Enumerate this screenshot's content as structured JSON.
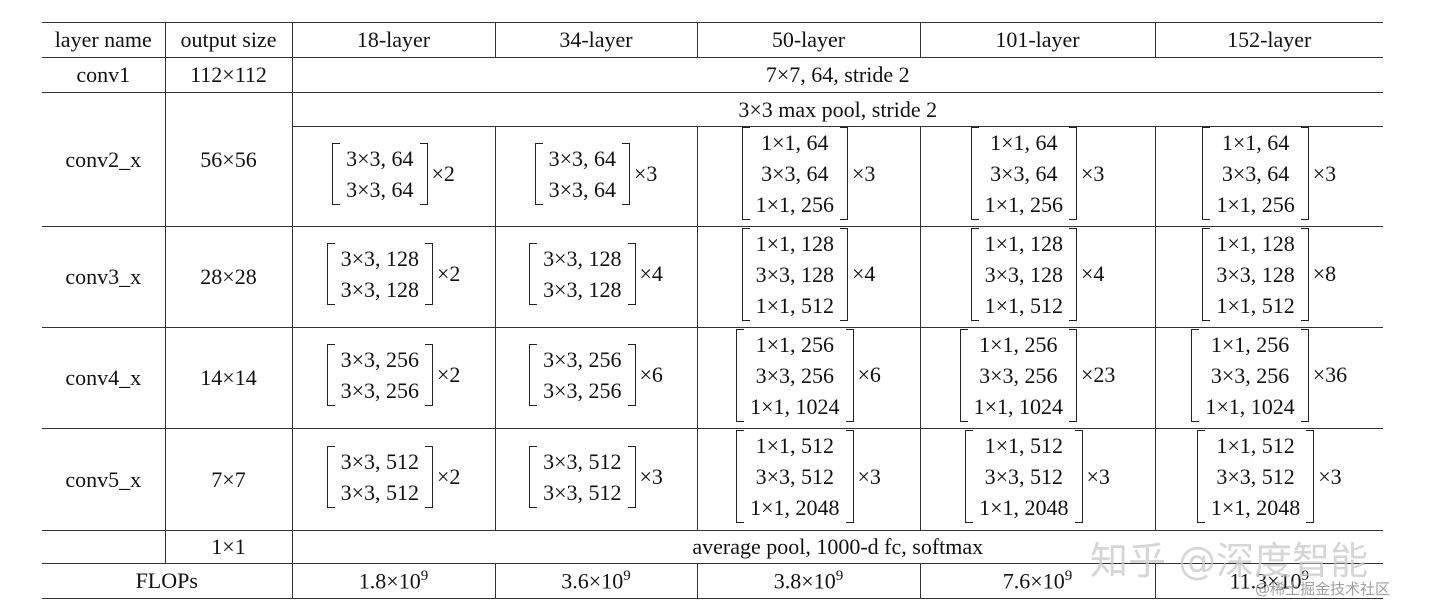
{
  "header": [
    "layer name",
    "output size",
    "18-layer",
    "34-layer",
    "50-layer",
    "101-layer",
    "152-layer"
  ],
  "rows": [
    {
      "name": "conv1",
      "output": "112×112",
      "config": "7×7, 64, stride 2"
    },
    {
      "name": "conv2_x",
      "output": "56×56",
      "pool": "3×3 max pool, stride 2",
      "blocks": [
        {
          "lines": [
            "3×3, 64",
            "3×3, 64"
          ],
          "repeat": "×2"
        },
        {
          "lines": [
            "3×3, 64",
            "3×3, 64"
          ],
          "repeat": "×3"
        },
        {
          "lines": [
            "1×1, 64",
            "3×3, 64",
            "1×1, 256"
          ],
          "repeat": "×3"
        },
        {
          "lines": [
            "1×1, 64",
            "3×3, 64",
            "1×1, 256"
          ],
          "repeat": "×3"
        },
        {
          "lines": [
            "1×1, 64",
            "3×3, 64",
            "1×1, 256"
          ],
          "repeat": "×3"
        }
      ]
    },
    {
      "name": "conv3_x",
      "output": "28×28",
      "blocks": [
        {
          "lines": [
            "3×3, 128",
            "3×3, 128"
          ],
          "repeat": "×2"
        },
        {
          "lines": [
            "3×3, 128",
            "3×3, 128"
          ],
          "repeat": "×4"
        },
        {
          "lines": [
            "1×1, 128",
            "3×3, 128",
            "1×1, 512"
          ],
          "repeat": "×4"
        },
        {
          "lines": [
            "1×1, 128",
            "3×3, 128",
            "1×1, 512"
          ],
          "repeat": "×4"
        },
        {
          "lines": [
            "1×1, 128",
            "3×3, 128",
            "1×1, 512"
          ],
          "repeat": "×8"
        }
      ]
    },
    {
      "name": "conv4_x",
      "output": "14×14",
      "blocks": [
        {
          "lines": [
            "3×3, 256",
            "3×3, 256"
          ],
          "repeat": "×2"
        },
        {
          "lines": [
            "3×3, 256",
            "3×3, 256"
          ],
          "repeat": "×6"
        },
        {
          "lines": [
            "1×1, 256",
            "3×3, 256",
            "1×1, 1024"
          ],
          "repeat": "×6"
        },
        {
          "lines": [
            "1×1, 256",
            "3×3, 256",
            "1×1, 1024"
          ],
          "repeat": "×23"
        },
        {
          "lines": [
            "1×1, 256",
            "3×3, 256",
            "1×1, 1024"
          ],
          "repeat": "×36"
        }
      ]
    },
    {
      "name": "conv5_x",
      "output": "7×7",
      "blocks": [
        {
          "lines": [
            "3×3, 512",
            "3×3, 512"
          ],
          "repeat": "×2"
        },
        {
          "lines": [
            "3×3, 512",
            "3×3, 512"
          ],
          "repeat": "×3"
        },
        {
          "lines": [
            "1×1, 512",
            "3×3, 512",
            "1×1, 2048"
          ],
          "repeat": "×3"
        },
        {
          "lines": [
            "1×1, 512",
            "3×3, 512",
            "1×1, 2048"
          ],
          "repeat": "×3"
        },
        {
          "lines": [
            "1×1, 512",
            "3×3, 512",
            "1×1, 2048"
          ],
          "repeat": "×3"
        }
      ]
    },
    {
      "output": "1×1",
      "config": "average pool, 1000-d fc, softmax"
    }
  ],
  "flops": {
    "name": "FLOPs",
    "values": [
      {
        "base": "1.8×10",
        "exp": "9"
      },
      {
        "base": "3.6×10",
        "exp": "9"
      },
      {
        "base": "3.8×10",
        "exp": "9"
      },
      {
        "base": "7.6×10",
        "exp": "9"
      },
      {
        "base": "11.3×10",
        "exp": "9"
      }
    ]
  },
  "watermark": {
    "main": "知乎 @深度智能",
    "sub": "@稀土掘金技术社区"
  }
}
